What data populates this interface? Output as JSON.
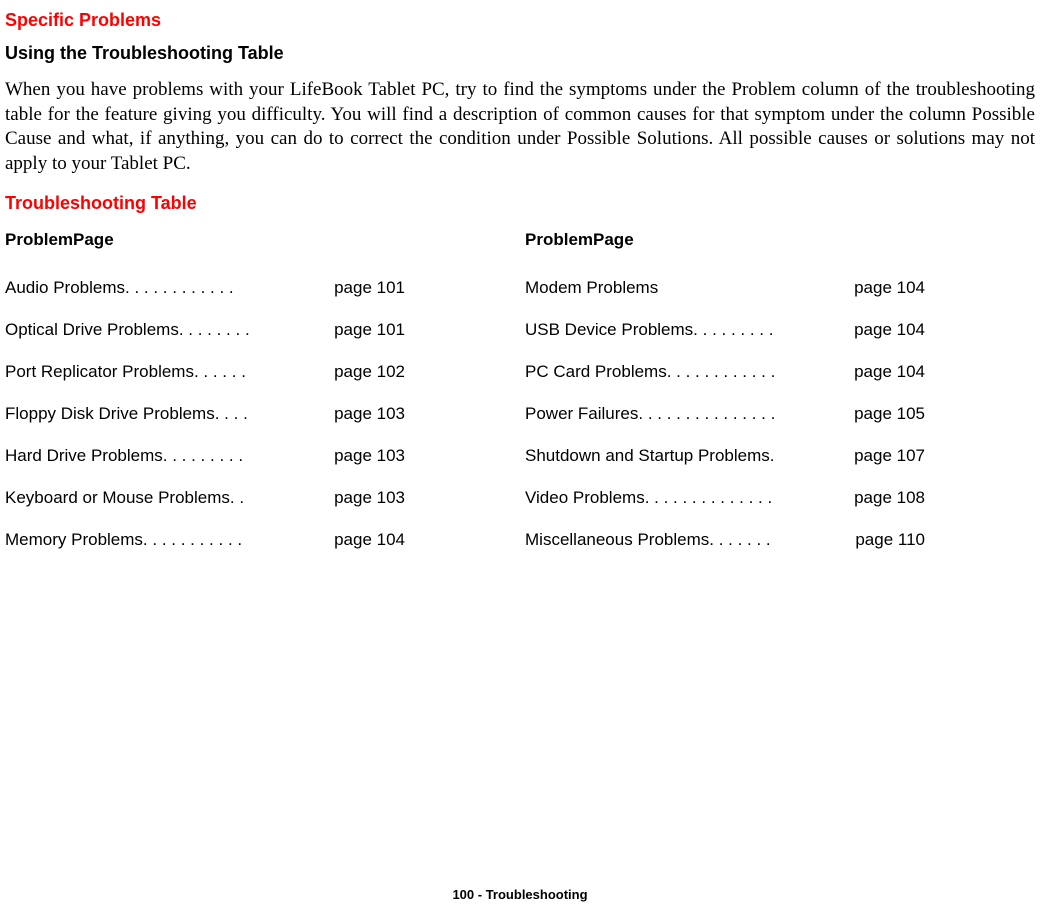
{
  "headings": {
    "specific_problems": "Specific Problems",
    "using_table": "Using the Troubleshooting Table",
    "troubleshooting_table": "Troubleshooting Table"
  },
  "body_paragraph": "When you have problems with your LifeBook Tablet PC, try to find the symptoms under the Problem column of the troubleshooting table for the feature giving you difficulty. You will find a description of common causes for that symptom under the column Possible Cause and what, if anything, you can do to correct the condition under Possible Solutions. All possible causes or solutions may not apply to your Tablet PC.",
  "column_headers": {
    "left": "ProblemPage",
    "right": "ProblemPage"
  },
  "left_entries": [
    {
      "label": "Audio Problems ",
      "dots": ". . . . . . . . . . . . ",
      "page": "page 101"
    },
    {
      "label": "Optical Drive Problems",
      "dots": ". . . . . . . . ",
      "page": "page 101"
    },
    {
      "label": "Port Replicator Problems ",
      "dots": ". . . . . . ",
      "page": "page 102"
    },
    {
      "label": "Floppy Disk Drive Problems ",
      "dots": ". . . . ",
      "page": "page 103"
    },
    {
      "label": "Hard Drive Problems ",
      "dots": ". . . . . . . . . ",
      "page": "page 103"
    },
    {
      "label": "Keyboard or Mouse Problems ",
      "dots": " . . ",
      "page": "page 103"
    },
    {
      "label": "Memory Problems ",
      "dots": " . . . . . . . . . . . ",
      "page": "page 104"
    }
  ],
  "right_entries": [
    {
      "label": "Modem Problems",
      "dots": "                              ",
      "page": "page 104"
    },
    {
      "label": "USB Device Problems ",
      "dots": ". . . . . . . . . ",
      "page": "page 104"
    },
    {
      "label": "PC Card Problems",
      "dots": ". . . . . . . . . . . . ",
      "page": "page 104"
    },
    {
      "label": "Power Failures ",
      "dots": ". . . . . . . . . . . . . . . ",
      "page": "page 105"
    },
    {
      "label": "Shutdown and Startup Problems",
      "dots": ". ",
      "page": "page 107"
    },
    {
      "label": "Video Problems ",
      "dots": ". . . . . . . . . . . . . . ",
      "page": "page 108"
    },
    {
      "label": "Miscellaneous Problems ",
      "dots": ". . . . . . . ",
      "page": "page 110"
    }
  ],
  "footer": {
    "page_num": "100",
    "section": " - Troubleshooting"
  },
  "colors": {
    "red": "#ff0000",
    "black": "#000000",
    "background": "#ffffff"
  },
  "typography": {
    "heading_fontsize": 18,
    "body_fontsize": 19,
    "toc_fontsize": 17,
    "footer_fontsize": 13
  }
}
